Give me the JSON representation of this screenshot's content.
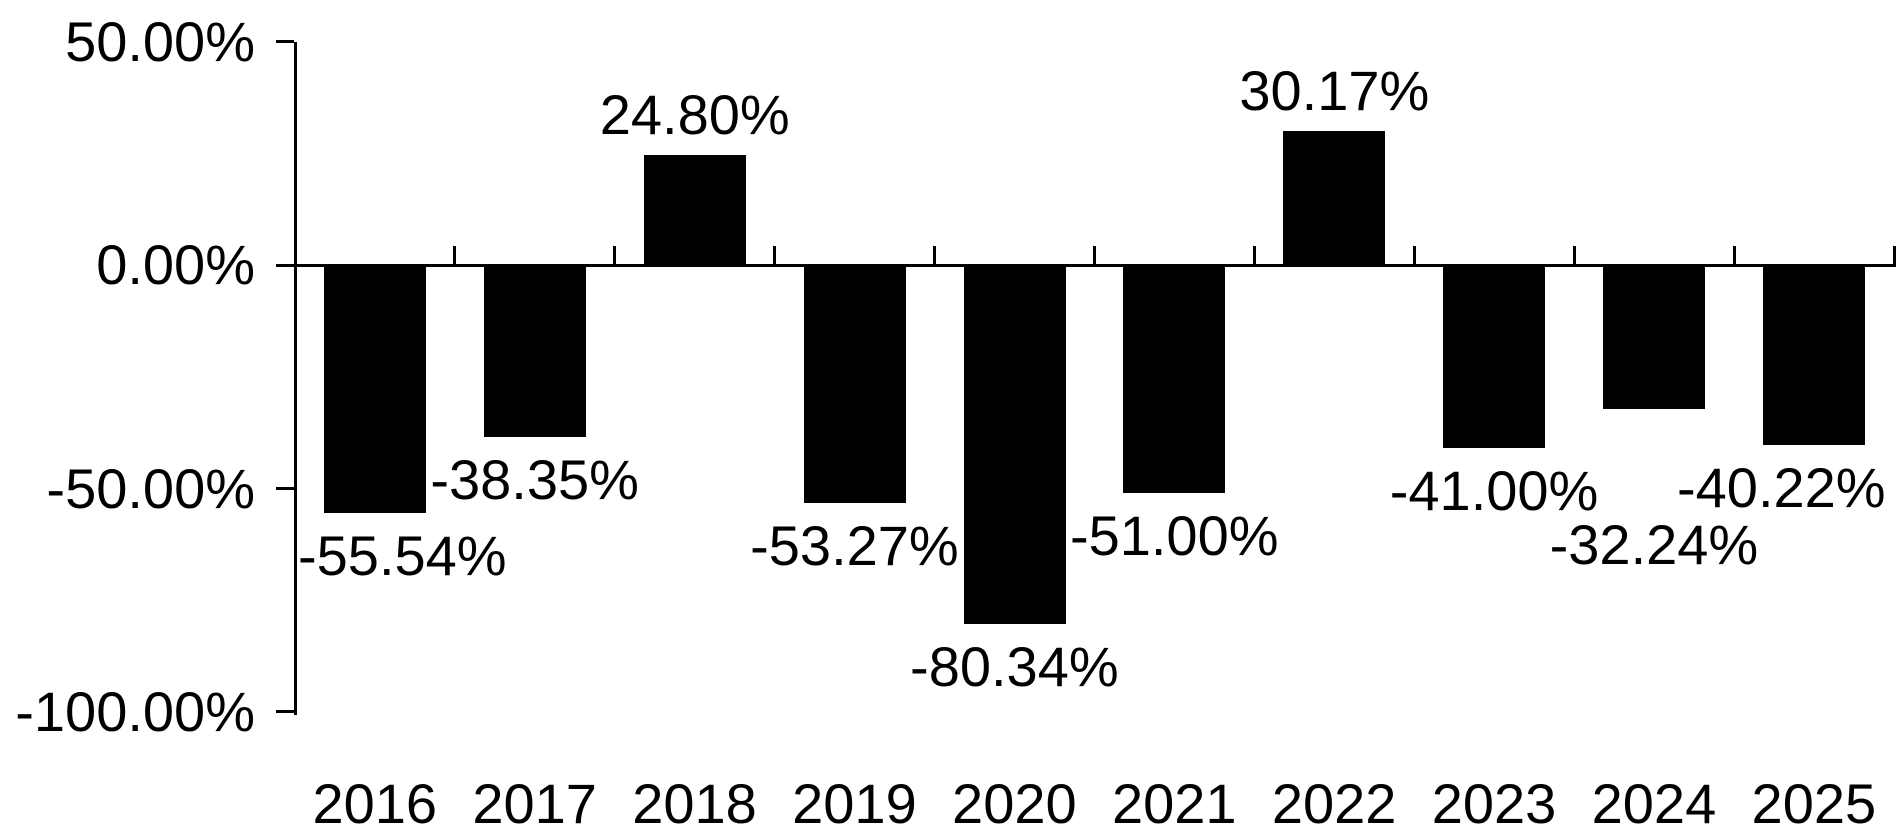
{
  "chart_data": {
    "type": "bar",
    "title": "",
    "xlabel": "",
    "ylabel": "",
    "categories": [
      "2016",
      "2017",
      "2018",
      "2019",
      "2020",
      "2021",
      "2022",
      "2023",
      "2024",
      "2025"
    ],
    "values": [
      -55.54,
      -38.35,
      24.8,
      -53.27,
      -80.34,
      -51.0,
      30.17,
      -41.0,
      -32.24,
      -40.22
    ],
    "data_labels": [
      "-55.54%",
      "-38.35%",
      "24.80%",
      "-53.27%",
      "-80.34%",
      "-51.00%",
      "30.17%",
      "-41.00%",
      "-32.24%",
      "-40.22%"
    ],
    "y_ticks": [
      {
        "label": "50.00%",
        "value": 50
      },
      {
        "label": "0.00%",
        "value": 0
      },
      {
        "label": "-50.00%",
        "value": -50
      },
      {
        "label": "-100.00%",
        "value": -100
      }
    ],
    "ylim": [
      -100,
      50
    ],
    "grid": false,
    "legend": "none",
    "bar_color": "#000000",
    "axis_color": "#000000",
    "text_color": "#000000",
    "background": "#ffffff"
  }
}
